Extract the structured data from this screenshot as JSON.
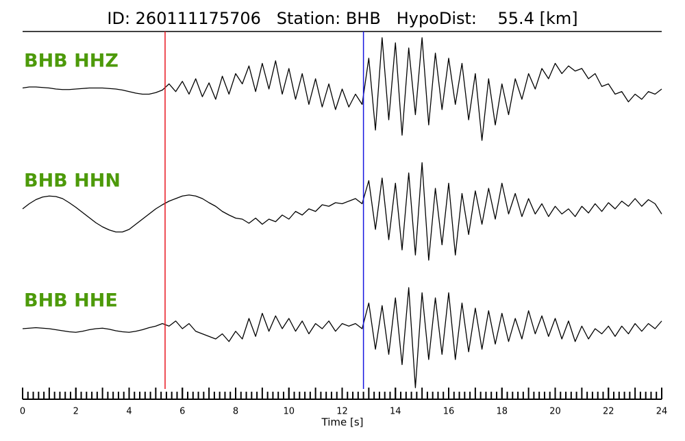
{
  "chart_data": {
    "type": "line",
    "title": "ID: 260111175706   Station: BHB   HypoDist:    55.4 [km]",
    "xlabel": "Time [s]",
    "xlim": [
      0,
      24
    ],
    "xticks": [
      0,
      2,
      4,
      6,
      8,
      10,
      12,
      14,
      16,
      18,
      20,
      22,
      24
    ],
    "xminor_step": 0.2,
    "ylim": [
      -1,
      1
    ],
    "label_color": "#4d9a0a",
    "picks": [
      {
        "time": 5.35,
        "color": "#e8141e"
      },
      {
        "time": 12.8,
        "color": "#1414e0"
      }
    ],
    "x": [
      0,
      0.25,
      0.5,
      0.75,
      1,
      1.25,
      1.5,
      1.75,
      2,
      2.25,
      2.5,
      2.75,
      3,
      3.25,
      3.5,
      3.75,
      4,
      4.25,
      4.5,
      4.75,
      5,
      5.25,
      5.5,
      5.75,
      6,
      6.25,
      6.5,
      6.75,
      7,
      7.25,
      7.5,
      7.75,
      8,
      8.25,
      8.5,
      8.75,
      9,
      9.25,
      9.5,
      9.75,
      10,
      10.25,
      10.5,
      10.75,
      11,
      11.25,
      11.5,
      11.75,
      12,
      12.25,
      12.5,
      12.75,
      13,
      13.25,
      13.5,
      13.75,
      14,
      14.25,
      14.5,
      14.75,
      15,
      15.25,
      15.5,
      15.75,
      16,
      16.25,
      16.5,
      16.75,
      17,
      17.25,
      17.5,
      17.75,
      18,
      18.25,
      18.5,
      18.75,
      19,
      19.25,
      19.5,
      19.75,
      20,
      20.25,
      20.5,
      20.75,
      21,
      21.25,
      21.5,
      21.75,
      22,
      22.25,
      22.5,
      22.75,
      23,
      23.25,
      23.5,
      23.75,
      24
    ],
    "series": [
      {
        "name": "BHB HHZ",
        "color": "#000000",
        "values": [
          0.02,
          0.04,
          0.04,
          0.03,
          0.02,
          0,
          -0.01,
          -0.01,
          0,
          0.01,
          0.02,
          0.02,
          0.02,
          0.01,
          0,
          -0.02,
          -0.05,
          -0.08,
          -0.1,
          -0.1,
          -0.07,
          -0.02,
          0.1,
          -0.05,
          0.15,
          -0.1,
          0.2,
          -0.15,
          0.12,
          -0.2,
          0.25,
          -0.1,
          0.3,
          0.1,
          0.45,
          -0.05,
          0.5,
          0,
          0.55,
          -0.1,
          0.4,
          -0.2,
          0.3,
          -0.3,
          0.2,
          -0.35,
          0.1,
          -0.4,
          0,
          -0.35,
          -0.1,
          -0.3,
          0.6,
          -0.8,
          1,
          -0.6,
          0.9,
          -0.9,
          0.8,
          -0.5,
          1,
          -0.7,
          0.7,
          -0.4,
          0.6,
          -0.3,
          0.5,
          -0.6,
          0.3,
          -1,
          0.2,
          -0.7,
          0.1,
          -0.5,
          0.2,
          -0.2,
          0.3,
          0,
          0.4,
          0.2,
          0.5,
          0.3,
          0.45,
          0.35,
          0.4,
          0.2,
          0.3,
          0.05,
          0.1,
          -0.1,
          -0.05,
          -0.25,
          -0.1,
          -0.2,
          -0.05,
          -0.1,
          0
        ]
      },
      {
        "name": "BHB HHN",
        "color": "#000000",
        "values": [
          0,
          0.1,
          0.18,
          0.23,
          0.25,
          0.24,
          0.2,
          0.12,
          0.03,
          -0.07,
          -0.17,
          -0.27,
          -0.35,
          -0.41,
          -0.45,
          -0.45,
          -0.4,
          -0.3,
          -0.2,
          -0.1,
          0,
          0.08,
          0.15,
          0.2,
          0.25,
          0.27,
          0.25,
          0.2,
          0.12,
          0.05,
          -0.05,
          -0.12,
          -0.18,
          -0.2,
          -0.28,
          -0.18,
          -0.3,
          -0.2,
          -0.25,
          -0.12,
          -0.2,
          -0.05,
          -0.12,
          0,
          -0.05,
          0.08,
          0.05,
          0.12,
          0.1,
          0.15,
          0.2,
          0.1,
          0.55,
          -0.4,
          0.6,
          -0.6,
          0.5,
          -0.8,
          0.7,
          -0.9,
          0.9,
          -1,
          0.4,
          -0.7,
          0.5,
          -0.9,
          0.3,
          -0.5,
          0.35,
          -0.3,
          0.4,
          -0.2,
          0.5,
          -0.1,
          0.3,
          -0.15,
          0.2,
          -0.1,
          0.1,
          -0.15,
          0.05,
          -0.1,
          0,
          -0.15,
          0.05,
          -0.08,
          0.1,
          -0.05,
          0.12,
          0,
          0.15,
          0.05,
          0.2,
          0.05,
          0.18,
          0.1,
          -0.1
        ]
      },
      {
        "name": "BHB HHE",
        "color": "#000000",
        "values": [
          0,
          0.01,
          0.02,
          0.01,
          0,
          -0.02,
          -0.04,
          -0.06,
          -0.07,
          -0.05,
          -0.02,
          0,
          0.01,
          -0.01,
          -0.04,
          -0.06,
          -0.07,
          -0.05,
          -0.02,
          0.02,
          0.05,
          0.1,
          0.05,
          0.15,
          0,
          0.1,
          -0.05,
          -0.1,
          -0.15,
          -0.2,
          -0.1,
          -0.25,
          -0.05,
          -0.2,
          0.2,
          -0.15,
          0.3,
          -0.05,
          0.25,
          0,
          0.2,
          -0.05,
          0.15,
          -0.1,
          0.1,
          0,
          0.15,
          -0.05,
          0.1,
          0.05,
          0.1,
          0,
          0.5,
          -0.4,
          0.45,
          -0.5,
          0.6,
          -0.7,
          0.8,
          -1.15,
          0.7,
          -0.6,
          0.6,
          -0.5,
          0.7,
          -0.6,
          0.5,
          -0.45,
          0.4,
          -0.4,
          0.35,
          -0.3,
          0.3,
          -0.25,
          0.2,
          -0.2,
          0.35,
          -0.1,
          0.25,
          -0.15,
          0.2,
          -0.2,
          0.15,
          -0.25,
          0.05,
          -0.2,
          0,
          -0.1,
          0.05,
          -0.15,
          0.05,
          -0.1,
          0.1,
          -0.05,
          0.1,
          0,
          0.15
        ]
      }
    ]
  }
}
